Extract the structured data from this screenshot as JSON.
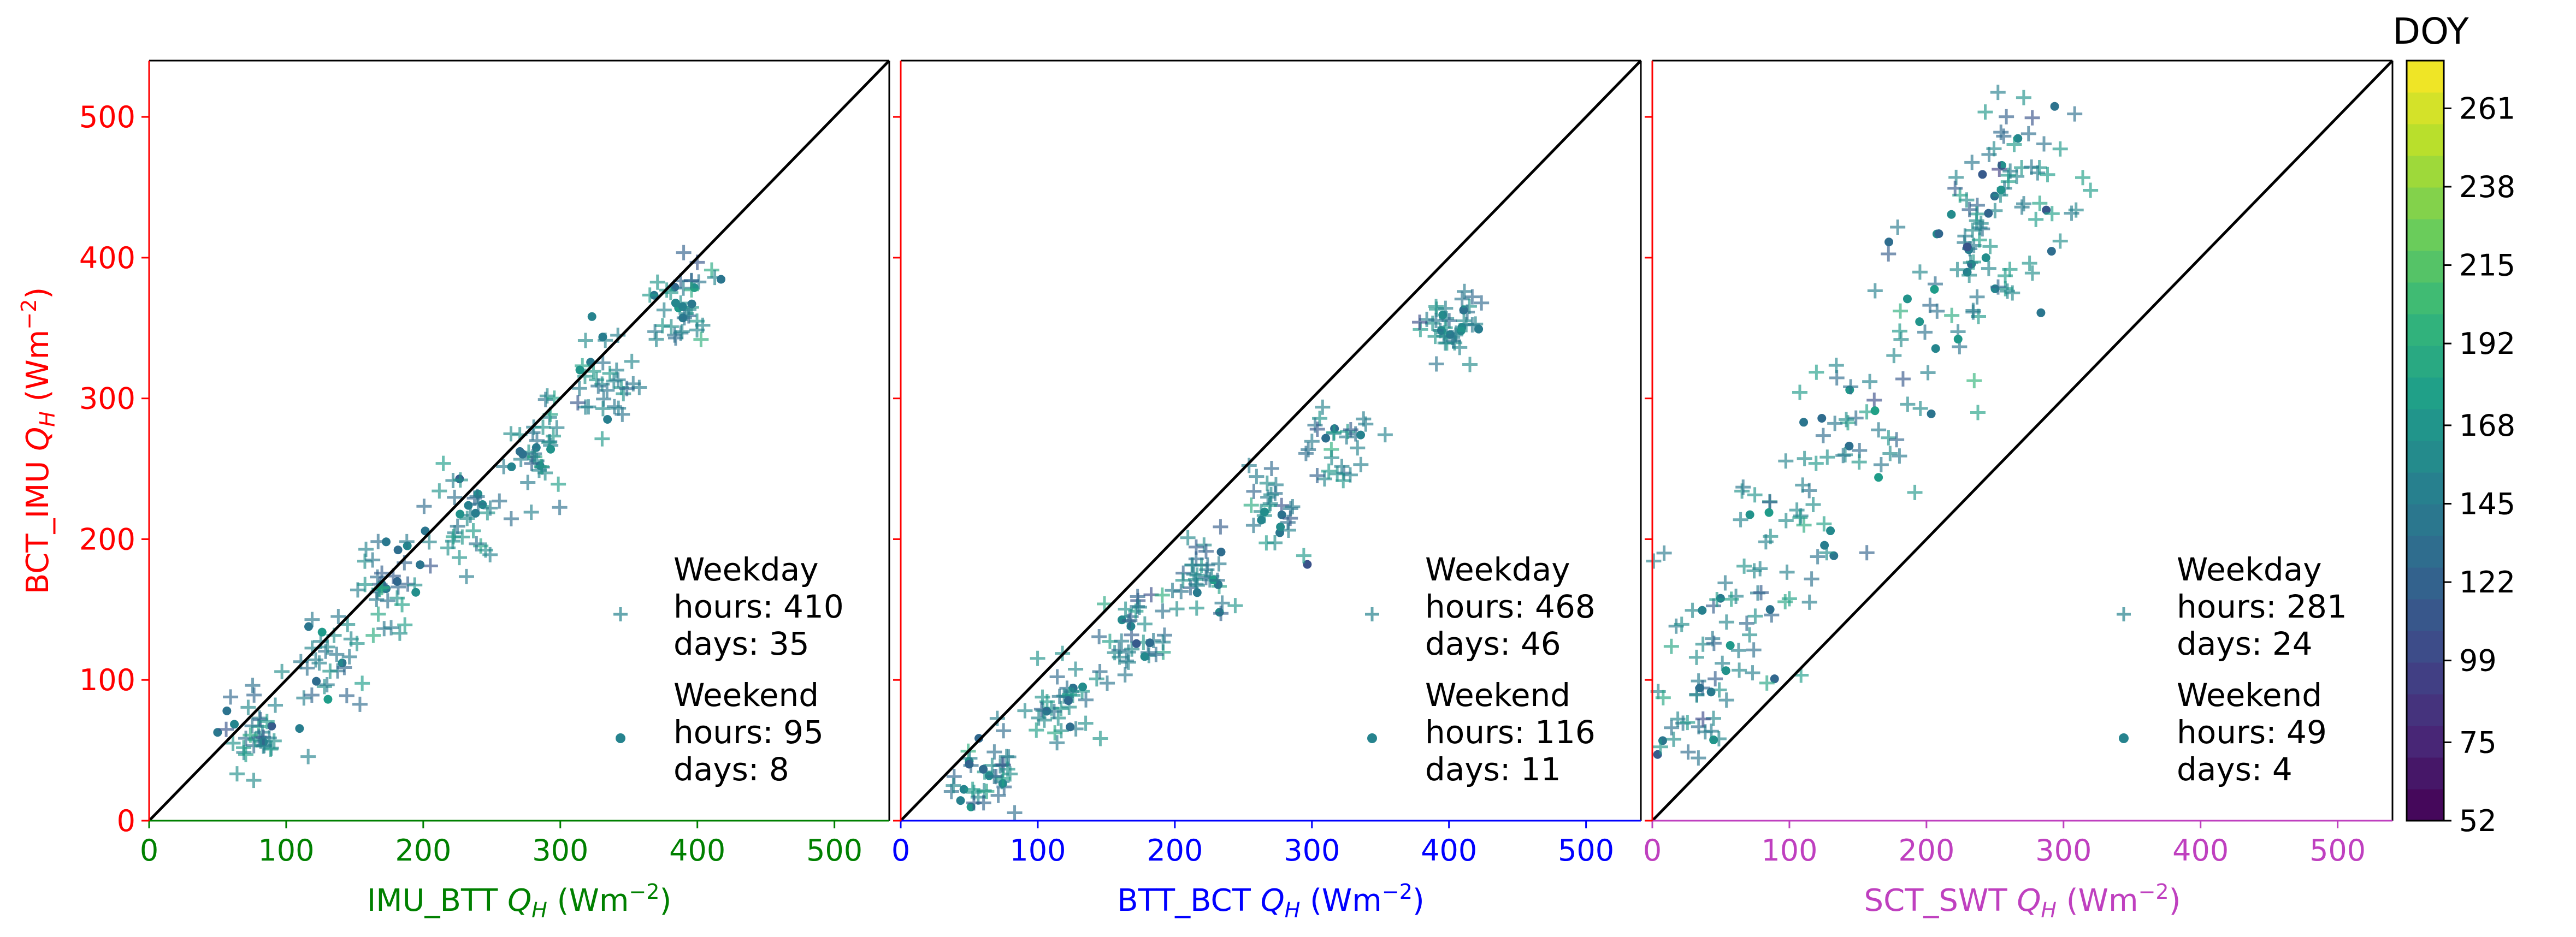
{
  "chart_data": {
    "type": "scatter",
    "colorbar": {
      "label": "DOY",
      "ticks": [
        52,
        75,
        99,
        122,
        145,
        168,
        192,
        215,
        238,
        261
      ],
      "range": [
        52,
        275
      ],
      "colormap": "viridis"
    },
    "y_axis_shared": {
      "label_prefix": "BCT_IMU ",
      "label_var": "Q",
      "label_sub": "H",
      "label_unit_open": " (Wm",
      "label_unit_exp": "−2",
      "label_unit_close": ")",
      "color": "#ff0000",
      "ylim": [
        0,
        540
      ],
      "ticks": [
        0,
        100,
        200,
        300,
        400,
        500
      ]
    },
    "panels": [
      {
        "x_axis": {
          "label_prefix": "IMU_BTT ",
          "color": "#008000",
          "xlim": [
            0,
            540
          ],
          "ticks": [
            0,
            100,
            200,
            300,
            400,
            500
          ]
        },
        "spine_color": "#008000",
        "legend": {
          "weekday": [
            "Weekday",
            "hours: 410",
            "days: 35"
          ],
          "weekend": [
            "Weekend",
            "hours: 95",
            "days: 8"
          ]
        },
        "cloud": {
          "centers": [
            [
              80,
              60
            ],
            [
              130,
              110
            ],
            [
              180,
              160
            ],
            [
              230,
              210
            ],
            [
              280,
              260
            ],
            [
              330,
              310
            ],
            [
              390,
              360
            ]
          ],
          "slope": 0.95,
          "offset": -5,
          "spread": 28
        }
      },
      {
        "x_axis": {
          "label_prefix": "BTT_BCT ",
          "color": "#0000ff",
          "xlim": [
            0,
            540
          ],
          "ticks": [
            0,
            100,
            200,
            300,
            400,
            500
          ]
        },
        "spine_color": "#0000ff",
        "legend": {
          "weekday": [
            "Weekday",
            "hours: 468",
            "days: 46"
          ],
          "weekend": [
            "Weekend",
            "hours: 116",
            "days: 11"
          ]
        },
        "cloud": {
          "centers": [
            [
              60,
              30
            ],
            [
              120,
              80
            ],
            [
              170,
              120
            ],
            [
              220,
              170
            ],
            [
              270,
              220
            ],
            [
              320,
              280
            ],
            [
              400,
              380
            ]
          ],
          "slope": 0.85,
          "offset": -10,
          "spread": 24
        }
      },
      {
        "x_axis": {
          "label_prefix": "SCT_SWT ",
          "color": "#bf40bf",
          "xlim": [
            0,
            540
          ],
          "ticks": [
            0,
            100,
            200,
            300,
            400,
            500
          ]
        },
        "spine_color": "#bf40bf",
        "legend": {
          "weekday": [
            "Weekday",
            "hours: 281",
            "days: 24"
          ],
          "weekend": [
            "Weekend",
            "hours: 49",
            "days: 4"
          ]
        },
        "cloud": {
          "centers": [
            [
              20,
              70
            ],
            [
              60,
              130
            ],
            [
              100,
              200
            ],
            [
              150,
              260
            ],
            [
              200,
              330
            ],
            [
              240,
              400
            ],
            [
              270,
              470
            ]
          ],
          "slope": 1.5,
          "offset": 60,
          "spread": 45
        }
      }
    ]
  }
}
